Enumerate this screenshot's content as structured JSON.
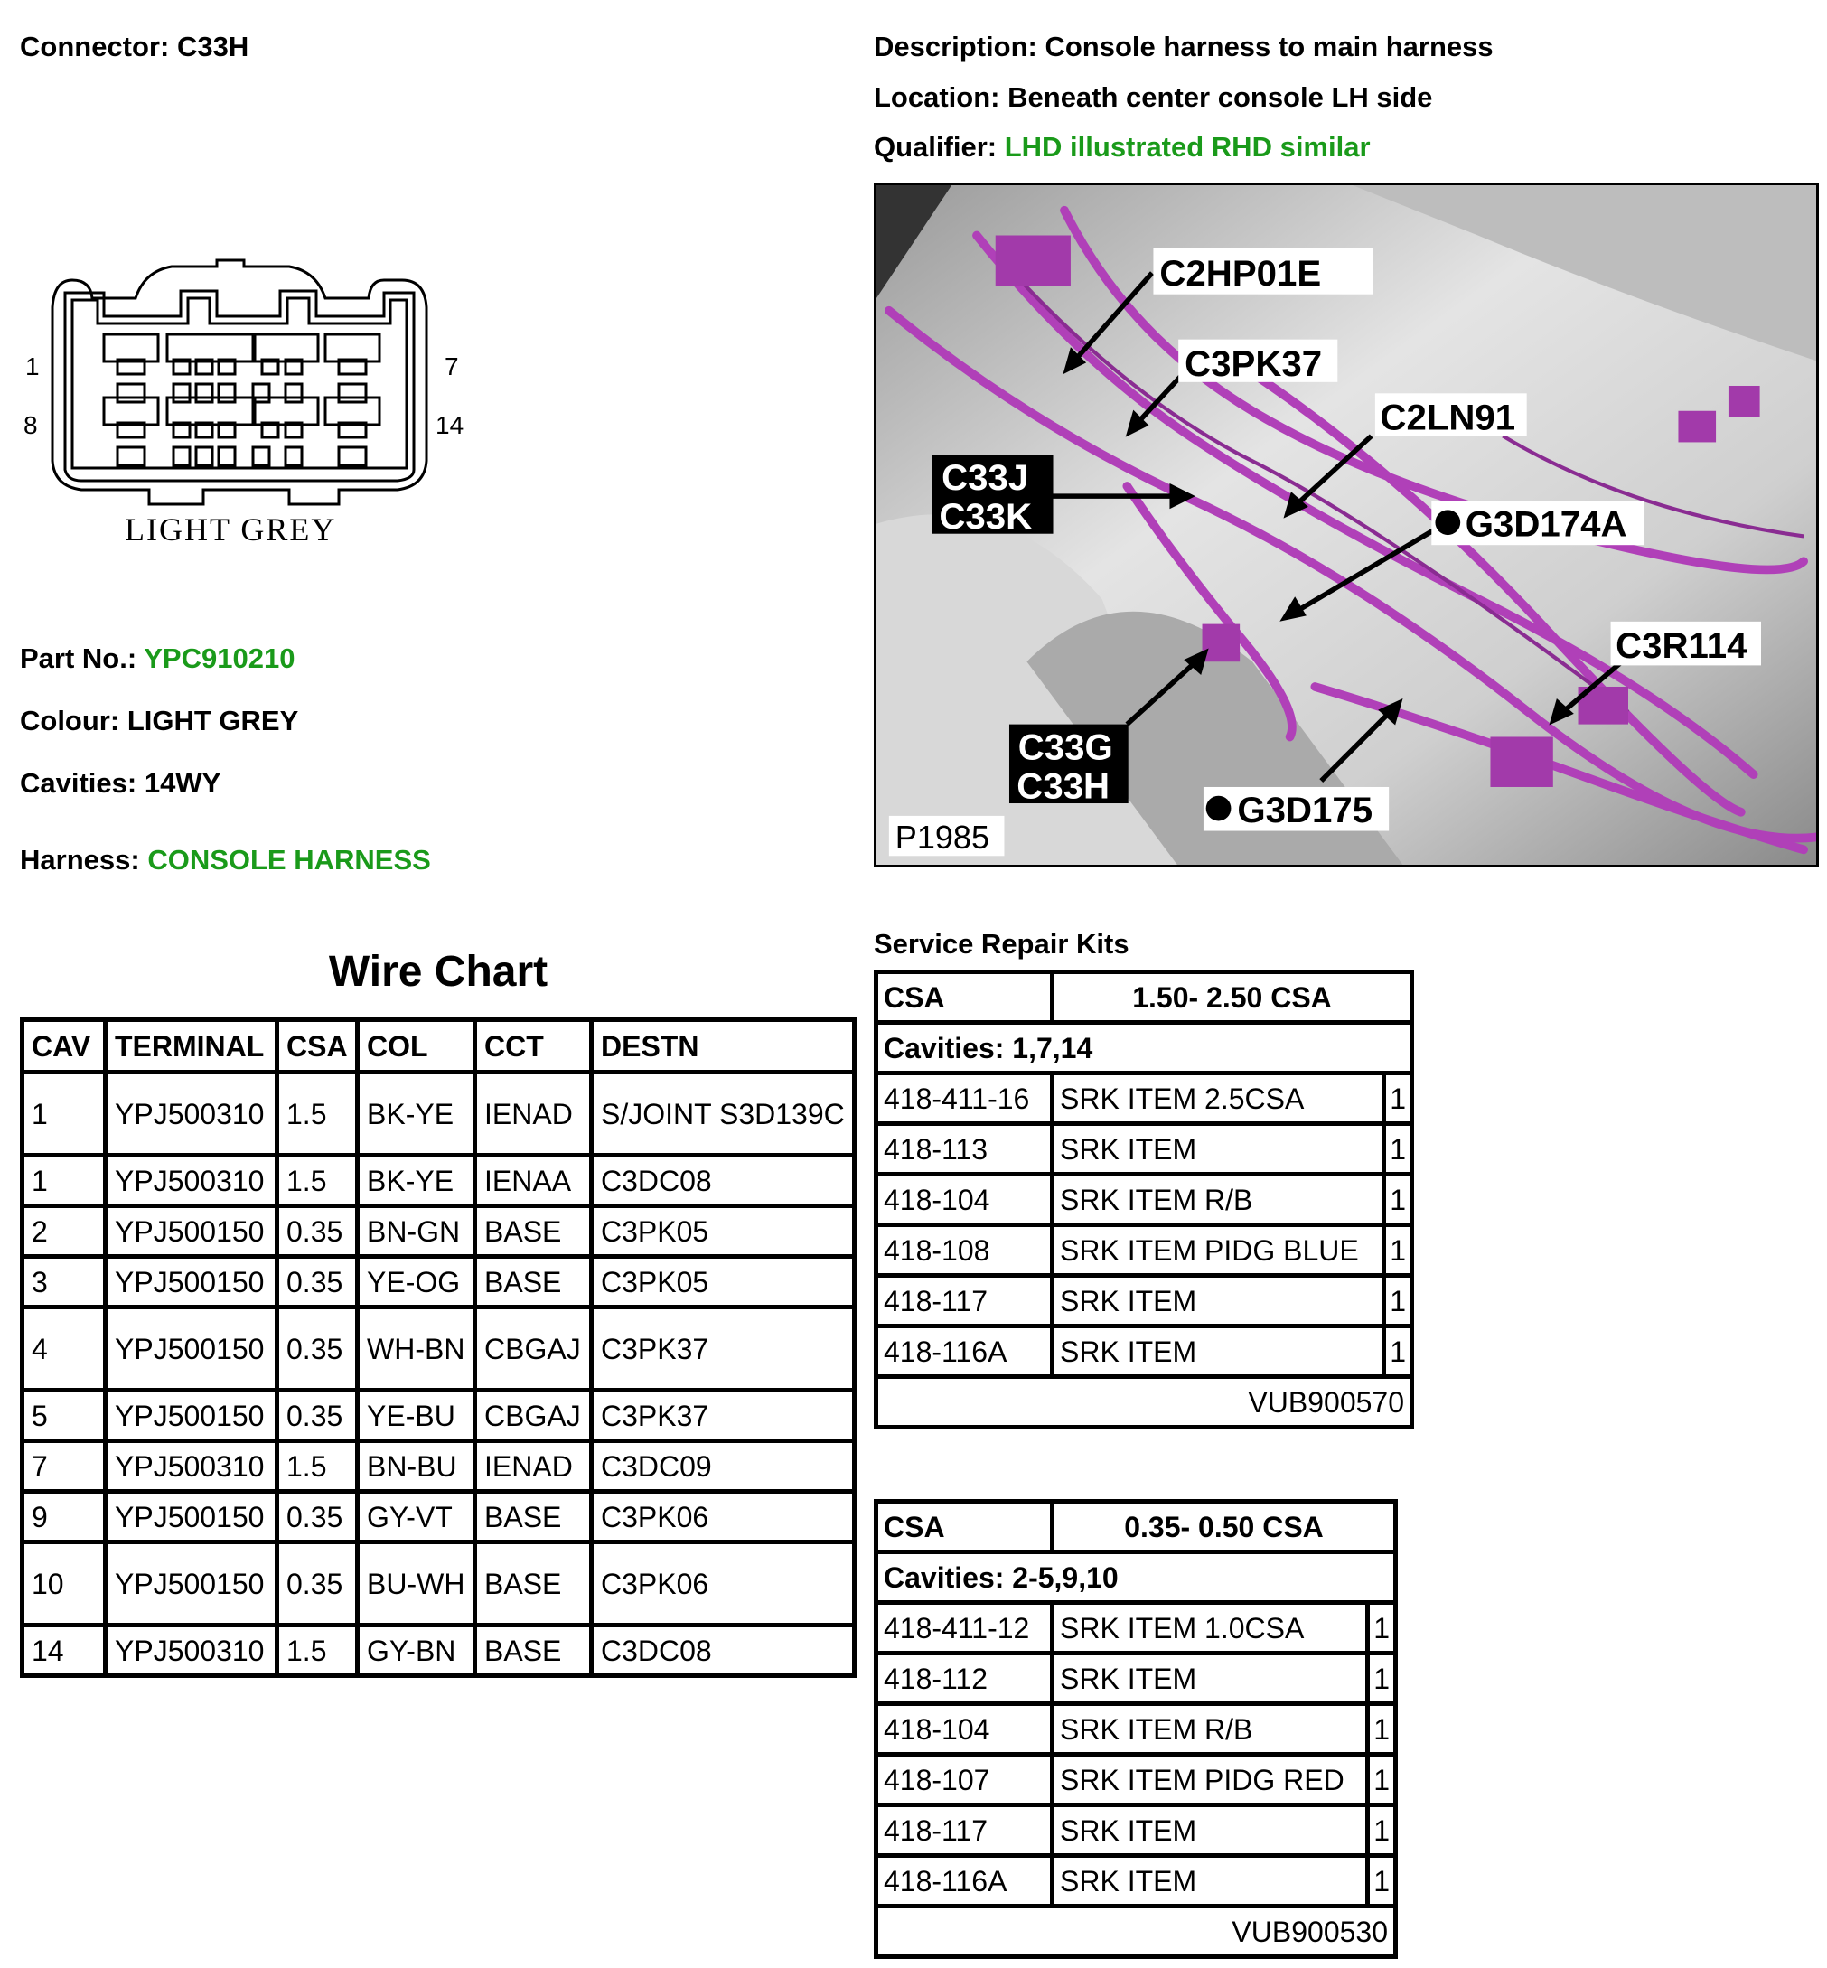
{
  "header": {
    "connector_label": "Connector:",
    "connector_value": "C33H",
    "description_label": "Description:",
    "description_value": "Console harness to main harness",
    "location_label": "Location:",
    "location_value": "Beneath center console LH side",
    "qualifier_label": "Qualifier:",
    "qualifier_value": "LHD illustrated RHD similar"
  },
  "connector_diagram": {
    "pin_labels": [
      "1",
      "7",
      "8",
      "14"
    ],
    "colour_caption": "LIGHT GREY"
  },
  "details": {
    "part_no_label": "Part No.:",
    "part_no_value": "YPC910210",
    "colour_label": "Colour:",
    "colour_value": "LIGHT GREY",
    "cavities_label": "Cavities:",
    "cavities_value": "14WY",
    "harness_label": "Harness:",
    "harness_value": "CONSOLE HARNESS"
  },
  "photo": {
    "labels": [
      "C2HP01E",
      "C3PK37",
      "C2LN91",
      "C33J",
      "C33K",
      "G3D174A",
      "C3R114",
      "C33G",
      "C33H",
      "G3D175"
    ],
    "ref": "P1985"
  },
  "wire_chart": {
    "title": "Wire Chart",
    "columns": [
      "CAV",
      "TERMINAL",
      "CSA",
      "COL",
      "CCT",
      "DESTN"
    ],
    "rows": [
      [
        "1",
        "YPJ500310",
        "1.5",
        "BK-YE",
        "IENAD",
        "S/JOINT S3D139C"
      ],
      [
        "1",
        "YPJ500310",
        "1.5",
        "BK-YE",
        "IENAA",
        "C3DC08"
      ],
      [
        "2",
        "YPJ500150",
        "0.35",
        "BN-GN",
        "BASE",
        "C3PK05"
      ],
      [
        "3",
        "YPJ500150",
        "0.35",
        "YE-OG",
        "BASE",
        "C3PK05"
      ],
      [
        "4",
        "YPJ500150",
        "0.35",
        "WH-BN",
        "CBGAJ",
        "C3PK37"
      ],
      [
        "5",
        "YPJ500150",
        "0.35",
        "YE-BU",
        "CBGAJ",
        "C3PK37"
      ],
      [
        "7",
        "YPJ500310",
        "1.5",
        "BN-BU",
        "IENAD",
        "C3DC09"
      ],
      [
        "9",
        "YPJ500150",
        "0.35",
        "GY-VT",
        "BASE",
        "C3PK06"
      ],
      [
        "10",
        "YPJ500150",
        "0.35",
        "BU-WH",
        "BASE",
        "C3PK06"
      ],
      [
        "14",
        "YPJ500310",
        "1.5",
        "GY-BN",
        "BASE",
        "C3DC08"
      ]
    ]
  },
  "repair_kits": {
    "title": "Service Repair Kits",
    "kits": [
      {
        "csa_label": "CSA",
        "csa_range": "1.50- 2.50 CSA",
        "cavities": "Cavities: 1,7,14",
        "items": [
          [
            "418-411-16",
            "SRK ITEM 2.5CSA",
            "1"
          ],
          [
            "418-113",
            "SRK ITEM",
            "1"
          ],
          [
            "418-104",
            "SRK ITEM R/B",
            "1"
          ],
          [
            "418-108",
            "SRK ITEM PIDG BLUE",
            "1"
          ],
          [
            "418-117",
            "SRK ITEM",
            "1"
          ],
          [
            "418-116A",
            "SRK ITEM",
            "1"
          ]
        ],
        "kit_no": "VUB900570"
      },
      {
        "csa_label": "CSA",
        "csa_range": "0.35- 0.50 CSA",
        "cavities": "Cavities: 2-5,9,10",
        "items": [
          [
            "418-411-12",
            "SRK ITEM 1.0CSA",
            "1"
          ],
          [
            "418-112",
            "SRK ITEM",
            "1"
          ],
          [
            "418-104",
            "SRK ITEM R/B",
            "1"
          ],
          [
            "418-107",
            "SRK ITEM PIDG RED",
            "1"
          ],
          [
            "418-117",
            "SRK ITEM",
            "1"
          ],
          [
            "418-116A",
            "SRK ITEM",
            "1"
          ]
        ],
        "kit_no": "VUB900530"
      }
    ]
  },
  "colors": {
    "highlight_green": "#1a9a1a",
    "harness_purple": "#b040b8"
  }
}
